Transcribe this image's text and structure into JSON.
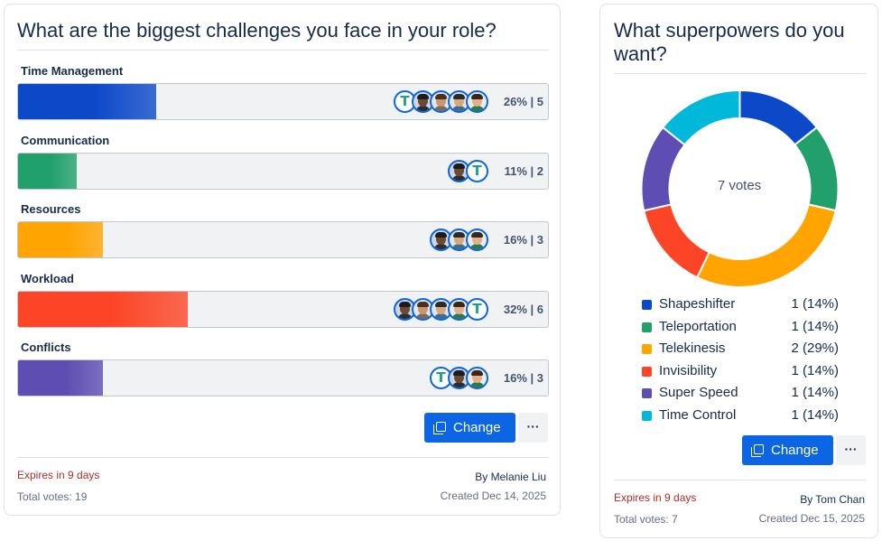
{
  "poll1": {
    "title": "What are the biggest challenges you face in your role?",
    "options": [
      {
        "label": "Time Management",
        "percent": 26,
        "votes": 5,
        "stat": "26% | 5",
        "color": "#0c49c9",
        "avatars": [
          "teal-logo",
          "person-dark",
          "person-brown",
          "person-glasses",
          "person-curly"
        ]
      },
      {
        "label": "Communication",
        "percent": 11,
        "votes": 2,
        "stat": "11% | 2",
        "color": "#22a06b",
        "avatars": [
          "person-dark",
          "teal-logo"
        ]
      },
      {
        "label": "Resources",
        "percent": 16,
        "votes": 3,
        "stat": "16% | 3",
        "color": "#ffa400",
        "avatars": [
          "person-dark",
          "person-glasses",
          "person-curly"
        ]
      },
      {
        "label": "Workload",
        "percent": 32,
        "votes": 6,
        "stat": "32% | 6",
        "color": "#fc4526",
        "avatars": [
          "person-dark",
          "person-brown",
          "person-glasses",
          "person-curly",
          "teal-logo"
        ]
      },
      {
        "label": "Conflicts",
        "percent": 16,
        "votes": 3,
        "stat": "16% | 3",
        "color": "#5e4db2",
        "avatars": [
          "teal-logo",
          "person-dark",
          "person-curly"
        ]
      }
    ],
    "change_label": "Change",
    "more_label": "···",
    "expires": "Expires in 9 days",
    "total_votes": "Total votes: 19",
    "by": "By Melanie Liu",
    "created": "Created Dec 14, 2025"
  },
  "poll2": {
    "title": "What superpowers do you want?",
    "center_label": "7 votes",
    "chart_data": {
      "type": "pie",
      "title": "What superpowers do you want?",
      "categories": [
        "Shapeshifter",
        "Teleportation",
        "Telekinesis",
        "Invisibility",
        "Super Speed",
        "Time Control"
      ],
      "values": [
        1,
        1,
        2,
        1,
        1,
        1
      ],
      "percents": [
        14,
        14,
        29,
        14,
        14,
        14
      ],
      "value_labels": [
        "1 (14%)",
        "1 (14%)",
        "2 (29%)",
        "1 (14%)",
        "1 (14%)",
        "1 (14%)"
      ],
      "colors": [
        "#0c49c9",
        "#22a06b",
        "#ffa400",
        "#fc4526",
        "#5e4db2",
        "#00b8d9"
      ],
      "legend": "bottom"
    },
    "change_label": "Change",
    "more_label": "···",
    "expires": "Expires in 9 days",
    "total_votes": "Total votes: 7",
    "by": "By Tom Chan",
    "created": "Created Dec 15, 2025"
  }
}
